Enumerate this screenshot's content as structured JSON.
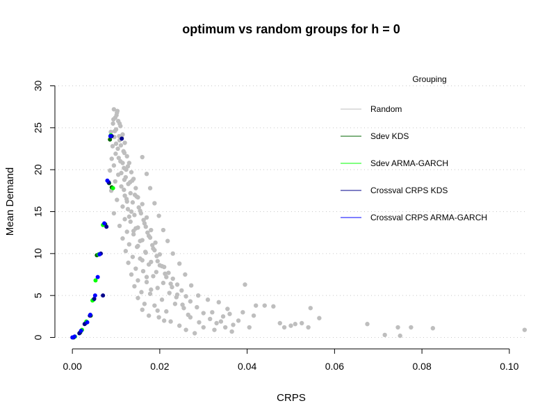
{
  "chart_data": {
    "type": "scatter",
    "title": "optimum vs random groups for h = 0",
    "xlabel": "CRPS",
    "ylabel": "Mean Demand",
    "xlim": [
      -0.004,
      0.104
    ],
    "ylim": [
      -1.2,
      31.2
    ],
    "xticks": [
      "0.00",
      "0.02",
      "0.04",
      "0.06",
      "0.08",
      "0.10"
    ],
    "xtick_values": [
      0,
      0.02,
      0.04,
      0.06,
      0.08,
      0.1
    ],
    "yticks": [
      "0",
      "5",
      "10",
      "15",
      "20",
      "25",
      "30"
    ],
    "ytick_values": [
      0,
      5,
      10,
      15,
      20,
      25,
      30
    ],
    "grid": "horizontal dotted",
    "legend": {
      "title": "Grouping",
      "placement": "top-right",
      "items": [
        {
          "label": "Random",
          "color": "#bebebe"
        },
        {
          "label": "Sdev KDS",
          "color": "#006400"
        },
        {
          "label": "Sdev ARMA-GARCH",
          "color": "#00ff00"
        },
        {
          "label": "Crossval CRPS KDS",
          "color": "#00008b"
        },
        {
          "label": "Crossval CRPS ARMA-GARCH",
          "color": "#0000ff"
        }
      ]
    },
    "series": [
      {
        "name": "Random",
        "color": "#bebebe",
        "description": "dense cloud of random groupings",
        "points": [
          [
            0.0095,
            27.2
          ],
          [
            0.0102,
            26.8
          ],
          [
            0.0098,
            26.2
          ],
          [
            0.0105,
            25.8
          ],
          [
            0.0093,
            25.5
          ],
          [
            0.011,
            25.2
          ],
          [
            0.01,
            24.8
          ],
          [
            0.0088,
            24.5
          ],
          [
            0.0115,
            24.2
          ],
          [
            0.0096,
            23.9
          ],
          [
            0.0108,
            23.5
          ],
          [
            0.012,
            23.2
          ],
          [
            0.0092,
            22.8
          ],
          [
            0.0104,
            22.5
          ],
          [
            0.0117,
            22.2
          ],
          [
            0.0099,
            21.9
          ],
          [
            0.0125,
            21.6
          ],
          [
            0.009,
            21.3
          ],
          [
            0.011,
            21.0
          ],
          [
            0.013,
            20.8
          ],
          [
            0.0095,
            20.5
          ],
          [
            0.0118,
            20.2
          ],
          [
            0.0086,
            19.9
          ],
          [
            0.0135,
            19.7
          ],
          [
            0.0105,
            19.4
          ],
          [
            0.0122,
            19.1
          ],
          [
            0.014,
            18.9
          ],
          [
            0.0098,
            18.6
          ],
          [
            0.0128,
            18.3
          ],
          [
            0.0112,
            18.0
          ],
          [
            0.0145,
            17.8
          ],
          [
            0.0089,
            17.5
          ],
          [
            0.0133,
            17.2
          ],
          [
            0.012,
            16.9
          ],
          [
            0.015,
            16.7
          ],
          [
            0.0102,
            16.4
          ],
          [
            0.0138,
            16.1
          ],
          [
            0.016,
            15.9
          ],
          [
            0.0115,
            15.6
          ],
          [
            0.0127,
            15.3
          ],
          [
            0.0155,
            15.1
          ],
          [
            0.0095,
            14.8
          ],
          [
            0.0142,
            14.6
          ],
          [
            0.017,
            14.3
          ],
          [
            0.012,
            14.1
          ],
          [
            0.0133,
            13.8
          ],
          [
            0.0165,
            13.6
          ],
          [
            0.0108,
            13.3
          ],
          [
            0.015,
            13.1
          ],
          [
            0.018,
            12.8
          ],
          [
            0.0125,
            12.6
          ],
          [
            0.014,
            12.3
          ],
          [
            0.0175,
            12.1
          ],
          [
            0.0115,
            11.8
          ],
          [
            0.016,
            11.6
          ],
          [
            0.019,
            11.3
          ],
          [
            0.013,
            11.1
          ],
          [
            0.0148,
            10.8
          ],
          [
            0.0185,
            10.6
          ],
          [
            0.0122,
            10.3
          ],
          [
            0.0168,
            10.1
          ],
          [
            0.02,
            9.9
          ],
          [
            0.0138,
            9.6
          ],
          [
            0.0155,
            9.4
          ],
          [
            0.0195,
            9.1
          ],
          [
            0.0128,
            8.9
          ],
          [
            0.0175,
            8.7
          ],
          [
            0.021,
            8.4
          ],
          [
            0.0145,
            8.2
          ],
          [
            0.0162,
            7.9
          ],
          [
            0.022,
            7.7
          ],
          [
            0.0135,
            7.5
          ],
          [
            0.0185,
            7.3
          ],
          [
            0.023,
            7.0
          ],
          [
            0.015,
            6.8
          ],
          [
            0.017,
            6.6
          ],
          [
            0.024,
            6.3
          ],
          [
            0.0142,
            6.1
          ],
          [
            0.0195,
            5.9
          ],
          [
            0.025,
            5.6
          ],
          [
            0.0158,
            5.4
          ],
          [
            0.0178,
            5.2
          ],
          [
            0.026,
            4.9
          ],
          [
            0.015,
            4.7
          ],
          [
            0.0205,
            4.5
          ],
          [
            0.027,
            4.3
          ],
          [
            0.0165,
            4.0
          ],
          [
            0.0188,
            3.8
          ],
          [
            0.0285,
            3.6
          ],
          [
            0.016,
            3.3
          ],
          [
            0.0215,
            3.1
          ],
          [
            0.03,
            2.9
          ],
          [
            0.0175,
            2.6
          ],
          [
            0.0198,
            2.4
          ],
          [
            0.0315,
            2.2
          ],
          [
            0.0225,
            1.9
          ],
          [
            0.033,
            1.7
          ],
          [
            0.0245,
            1.4
          ],
          [
            0.035,
            1.2
          ],
          [
            0.026,
            0.9
          ],
          [
            0.0365,
            0.7
          ],
          [
            0.028,
            0.5
          ],
          [
            0.0101,
            26.5
          ],
          [
            0.0107,
            24.0
          ],
          [
            0.0111,
            22.9
          ],
          [
            0.0123,
            20.0
          ],
          [
            0.0132,
            18.5
          ],
          [
            0.0143,
            17.0
          ],
          [
            0.0152,
            15.5
          ],
          [
            0.0163,
            14.0
          ],
          [
            0.0172,
            12.5
          ],
          [
            0.0183,
            11.0
          ],
          [
            0.0193,
            9.7
          ],
          [
            0.0205,
            8.5
          ],
          [
            0.0215,
            7.2
          ],
          [
            0.0228,
            6.0
          ],
          [
            0.0238,
            4.8
          ],
          [
            0.0252,
            3.9
          ],
          [
            0.0265,
            2.7
          ],
          [
            0.029,
            1.8
          ],
          [
            0.031,
            4.5
          ],
          [
            0.032,
            3.0
          ],
          [
            0.0335,
            4.2
          ],
          [
            0.0345,
            2.5
          ],
          [
            0.0355,
            3.4
          ],
          [
            0.0368,
            1.5
          ],
          [
            0.038,
            2.0
          ],
          [
            0.039,
            3.0
          ],
          [
            0.0395,
            6.3
          ],
          [
            0.0405,
            1.2
          ],
          [
            0.0415,
            2.6
          ],
          [
            0.042,
            3.8
          ],
          [
            0.044,
            3.8
          ],
          [
            0.046,
            3.7
          ],
          [
            0.0475,
            1.7
          ],
          [
            0.0485,
            1.2
          ],
          [
            0.05,
            1.4
          ],
          [
            0.051,
            1.6
          ],
          [
            0.0525,
            1.7
          ],
          [
            0.054,
            1.2
          ],
          [
            0.0545,
            3.5
          ],
          [
            0.0565,
            2.3
          ],
          [
            0.0675,
            1.6
          ],
          [
            0.0715,
            0.3
          ],
          [
            0.0745,
            1.2
          ],
          [
            0.075,
            0.2
          ],
          [
            0.0775,
            1.2
          ],
          [
            0.0825,
            1.1
          ],
          [
            0.1035,
            0.9
          ],
          [
            0.016,
            21.5
          ],
          [
            0.017,
            19.5
          ],
          [
            0.0178,
            17.8
          ],
          [
            0.0188,
            16.0
          ],
          [
            0.0198,
            14.5
          ],
          [
            0.0208,
            12.8
          ],
          [
            0.0218,
            11.5
          ],
          [
            0.023,
            10.0
          ],
          [
            0.0245,
            8.8
          ],
          [
            0.0258,
            7.5
          ],
          [
            0.0272,
            6.2
          ],
          [
            0.0288,
            5.0
          ],
          [
            0.0115,
            20.8
          ],
          [
            0.0119,
            18.8
          ],
          [
            0.0124,
            16.5
          ],
          [
            0.0135,
            15.0
          ],
          [
            0.0145,
            13.0
          ],
          [
            0.0155,
            11.5
          ],
          [
            0.0167,
            10.2
          ],
          [
            0.018,
            9.0
          ],
          [
            0.0192,
            7.8
          ],
          [
            0.0208,
            6.5
          ],
          [
            0.0222,
            5.3
          ],
          [
            0.0235,
            4.0
          ],
          [
            0.0195,
            3.2
          ],
          [
            0.021,
            2.0
          ],
          [
            0.018,
            5.7
          ],
          [
            0.017,
            7.2
          ],
          [
            0.016,
            9.2
          ],
          [
            0.015,
            10.9
          ],
          [
            0.014,
            12.7
          ],
          [
            0.013,
            14.4
          ],
          [
            0.0125,
            16.2
          ],
          [
            0.0118,
            17.6
          ],
          [
            0.0112,
            19.6
          ],
          [
            0.0106,
            21.4
          ],
          [
            0.01,
            23.1
          ],
          [
            0.0097,
            24.6
          ],
          [
            0.0094,
            26.0
          ],
          [
            0.0103,
            27.0
          ],
          [
            0.0108,
            25.5
          ],
          [
            0.0113,
            23.8
          ],
          [
            0.0119,
            22.0
          ],
          [
            0.0127,
            20.4
          ],
          [
            0.0137,
            18.7
          ],
          [
            0.0147,
            16.8
          ],
          [
            0.0157,
            14.8
          ],
          [
            0.0168,
            13.2
          ],
          [
            0.0178,
            11.9
          ],
          [
            0.0188,
            10.4
          ],
          [
            0.02,
            8.6
          ],
          [
            0.0212,
            7.6
          ],
          [
            0.0225,
            6.4
          ],
          [
            0.024,
            5.1
          ],
          [
            0.0255,
            3.5
          ],
          [
            0.027,
            2.4
          ],
          [
            0.03,
            1.2
          ],
          [
            0.0325,
            0.9
          ],
          [
            0.034,
            1.9
          ],
          [
            0.036,
            2.8
          ]
        ]
      },
      {
        "name": "Sdev KDS",
        "color": "#006400",
        "points": [
          [
            0.0003,
            0.0
          ],
          [
            0.0018,
            0.6
          ],
          [
            0.003,
            1.7
          ],
          [
            0.0042,
            2.6
          ],
          [
            0.0048,
            4.5
          ],
          [
            0.0056,
            9.8
          ],
          [
            0.0075,
            13.5
          ],
          [
            0.0086,
            23.6
          ],
          [
            0.009,
            17.9
          ],
          [
            0.0084,
            18.4
          ]
        ]
      },
      {
        "name": "Sdev ARMA-GARCH",
        "color": "#00ff00",
        "points": [
          [
            0.0006,
            0.1
          ],
          [
            0.0022,
            0.9
          ],
          [
            0.0032,
            1.9
          ],
          [
            0.0046,
            4.4
          ],
          [
            0.0053,
            6.8
          ],
          [
            0.006,
            9.9
          ],
          [
            0.007,
            13.4
          ],
          [
            0.0093,
            17.8
          ],
          [
            0.0088,
            24.1
          ]
        ]
      },
      {
        "name": "Crossval CRPS KDS",
        "color": "#00008b",
        "points": [
          [
            0.0001,
            0.0
          ],
          [
            0.0016,
            0.5
          ],
          [
            0.0028,
            1.6
          ],
          [
            0.004,
            2.6
          ],
          [
            0.005,
            4.6
          ],
          [
            0.007,
            5.0
          ],
          [
            0.0065,
            10.0
          ],
          [
            0.0078,
            13.2
          ],
          [
            0.0083,
            18.5
          ],
          [
            0.009,
            24.0
          ],
          [
            0.0113,
            23.7
          ]
        ]
      },
      {
        "name": "Crossval CRPS ARMA-GARCH",
        "color": "#0000ff",
        "points": [
          [
            0.0,
            0.0
          ],
          [
            0.0005,
            0.1
          ],
          [
            0.002,
            0.8
          ],
          [
            0.0034,
            1.8
          ],
          [
            0.0041,
            2.7
          ],
          [
            0.0052,
            5.0
          ],
          [
            0.0058,
            7.2
          ],
          [
            0.0062,
            9.9
          ],
          [
            0.0073,
            13.6
          ],
          [
            0.008,
            18.7
          ],
          [
            0.0087,
            24.0
          ]
        ]
      }
    ]
  }
}
